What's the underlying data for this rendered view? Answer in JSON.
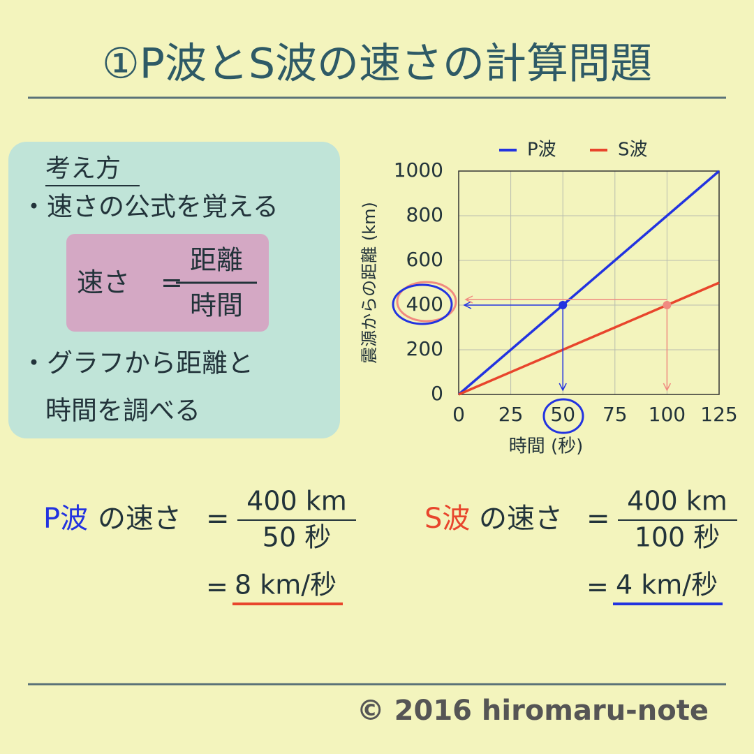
{
  "title": "①P波とS波の速さの計算問題",
  "hint": {
    "heading": "考え方",
    "items": [
      "・速さの公式を覚える",
      "・グラフから距離と",
      "時間を調べる"
    ],
    "formula": {
      "left": "速さ",
      "eq": "=",
      "numerator": "距離",
      "denominator": "時間"
    }
  },
  "equations": [
    {
      "wave": "P波",
      "rest": "の速さ",
      "eq": "=",
      "numerator": "400 km",
      "denominator": "50 秒",
      "result_eq": "=",
      "result": "8 km/秒"
    },
    {
      "wave": "S波",
      "rest": "の速さ",
      "eq": "=",
      "numerator": "400 km",
      "denominator": "100 秒",
      "result_eq": "=",
      "result": "4 km/秒"
    }
  ],
  "footer": "© 2016 hiromaru-note",
  "chart_data": {
    "type": "line",
    "xlabel": "時間 (秒)",
    "ylabel": "震源からの距離 (km)",
    "x": [
      0,
      125
    ],
    "series": [
      {
        "name": "P波",
        "color": "#2233e0",
        "values": [
          0,
          1000
        ]
      },
      {
        "name": "S波",
        "color": "#e8452c",
        "values": [
          0,
          500
        ]
      }
    ],
    "points": [
      {
        "x": 50,
        "y": 400,
        "color": "#2233e0"
      },
      {
        "x": 100,
        "y": 400,
        "color": "#f08a80"
      }
    ],
    "xlim": [
      0,
      125
    ],
    "xticks": [
      0,
      25,
      50,
      75,
      100,
      125
    ],
    "ylim": [
      0,
      1000
    ],
    "yticks": [
      0,
      200,
      400,
      600,
      800,
      1000
    ],
    "grid": true,
    "legend": "top"
  }
}
